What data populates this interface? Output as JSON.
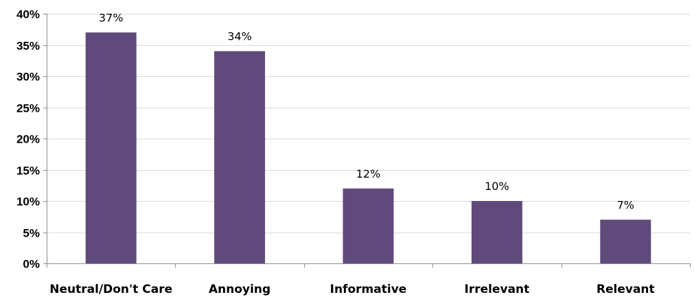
{
  "chart_data": {
    "type": "bar",
    "title": "",
    "xlabel": "",
    "ylabel": "",
    "categories": [
      "Neutral/Don't Care",
      "Annoying",
      "Informative",
      "Irrelevant",
      "Relevant"
    ],
    "values": [
      37,
      34,
      12,
      10,
      7
    ],
    "data_labels": [
      "37%",
      "34%",
      "12%",
      "10%",
      "7%"
    ],
    "ylim": [
      0,
      40
    ],
    "y_ticks": [
      0,
      5,
      10,
      15,
      20,
      25,
      30,
      35,
      40
    ],
    "y_tick_labels": [
      "0%",
      "5%",
      "10%",
      "15%",
      "20%",
      "25%",
      "30%",
      "35%",
      "40%"
    ],
    "grid": true,
    "legend": "none",
    "bar_color": "#604a7b",
    "grid_color": "#d9d9d9",
    "axis_color": "#8c8c8c"
  }
}
